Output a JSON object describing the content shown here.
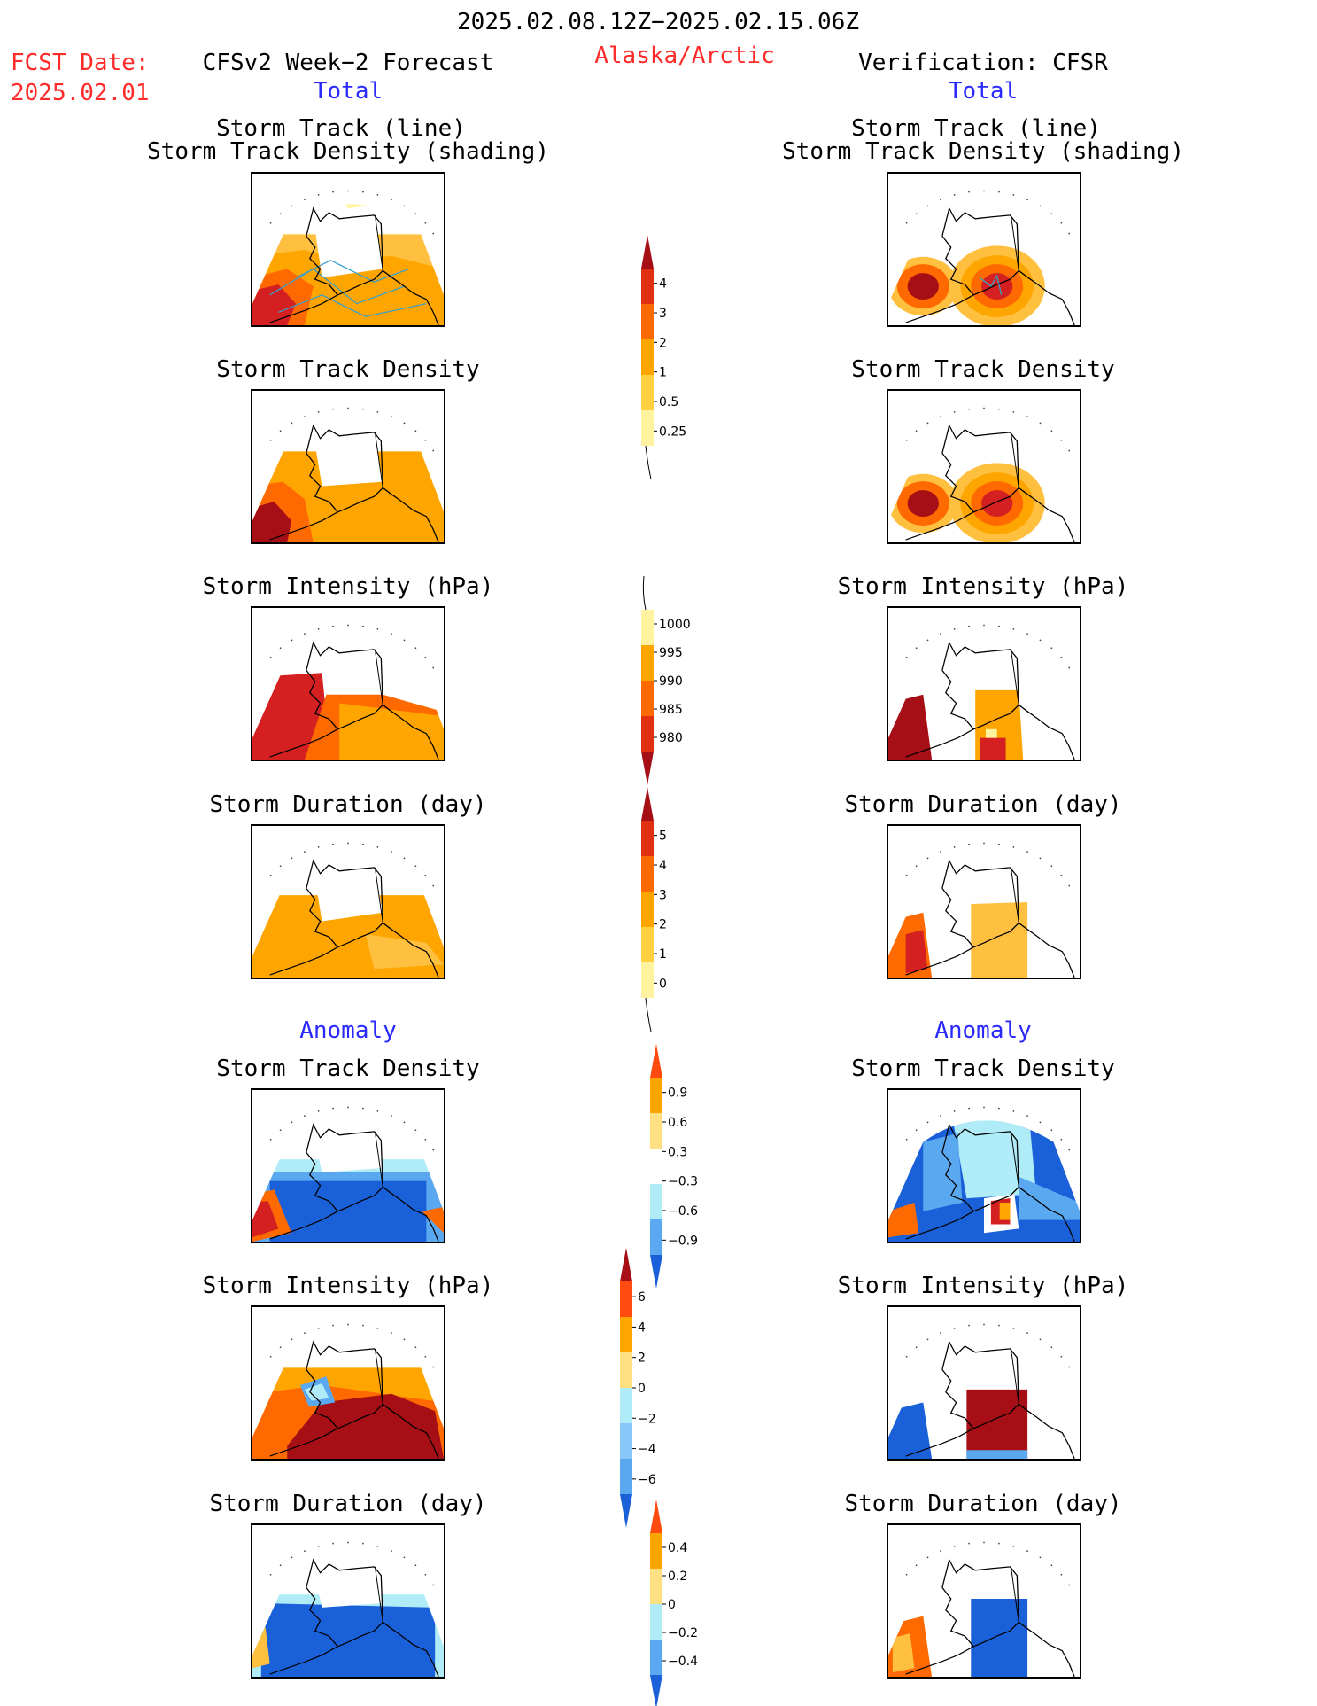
{
  "header": {
    "date_range": "2025.02.08.12Z−2025.02.15.06Z",
    "region": "Alaska/Arctic",
    "fcst_date_label": "FCST Date:",
    "fcst_date_value": "2025.02.01",
    "left_title": "CFSv2 Week−2 Forecast",
    "right_title": "Verification: CFSR",
    "left_total": "Total",
    "right_total": "Total",
    "left_anomaly": "Anomaly",
    "right_anomaly": "Anomaly"
  },
  "panel_titles": {
    "track_line": "Storm Track (line)",
    "track_shading": "Storm Track Density (shading)",
    "density": "Storm Track Density",
    "intensity": "Storm Intensity (hPa)",
    "duration": "Storm Duration (day)"
  },
  "colorbars": {
    "density_total": {
      "labels": [
        "4",
        "3",
        "2",
        "1",
        "0.5",
        "0.25"
      ],
      "colors": [
        "#a50f15",
        "#e03010",
        "#ff6a00",
        "#ffa500",
        "#ffd040",
        "#fff3a0"
      ]
    },
    "intensity_total": {
      "labels": [
        "1000",
        "995",
        "990",
        "985",
        "980"
      ],
      "colors": [
        "#fff3a0",
        "#ffa500",
        "#ff6a00",
        "#e03010",
        "#a50f15"
      ]
    },
    "duration_total": {
      "labels": [
        "5",
        "4",
        "3",
        "2",
        "1",
        "0"
      ],
      "colors": [
        "#a50f15",
        "#e03010",
        "#ff6a00",
        "#ffa500",
        "#ffd040",
        "#fff3a0"
      ]
    },
    "density_anomaly": {
      "labels": [
        "0.9",
        "0.6",
        "0.3",
        "−0.3",
        "−0.6",
        "−0.9"
      ],
      "colors": [
        "#ff4a10",
        "#ffa500",
        "#ffe080",
        "#ffffff",
        "#b0ecf8",
        "#5aa8f0",
        "#1a60d8"
      ]
    },
    "intensity_anomaly": {
      "labels": [
        "6",
        "4",
        "2",
        "0",
        "−2",
        "−4",
        "−6"
      ],
      "colors": [
        "#a50f15",
        "#ff4a10",
        "#ffa500",
        "#ffe080",
        "#b0ecf8",
        "#88c8f8",
        "#5aa8f0",
        "#1a60d8"
      ]
    },
    "duration_anomaly": {
      "labels": [
        "0.4",
        "0.2",
        "0",
        "−0.2",
        "−0.4"
      ],
      "colors": [
        "#ff4a10",
        "#ffa500",
        "#ffe080",
        "#b0ecf8",
        "#5aa8f0",
        "#1a60d8"
      ]
    }
  },
  "map_colors": {
    "dark_red": "#a50f15",
    "red": "#d42020",
    "orange_red": "#ff6a00",
    "orange": "#ffa500",
    "light_orange": "#ffc040",
    "yellow": "#fff3a0",
    "dark_blue": "#1a60d8",
    "blue": "#5aa8f0",
    "light_blue": "#b0ecf8",
    "track_line": "#3aa0c8",
    "coast": "#000000"
  }
}
